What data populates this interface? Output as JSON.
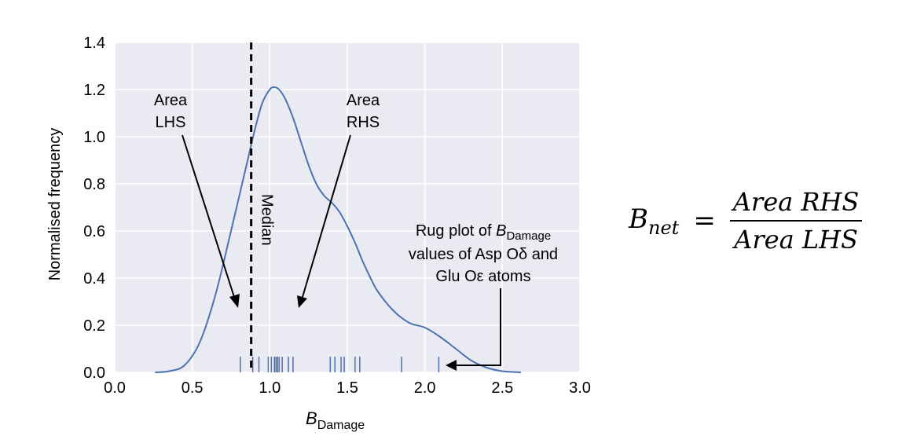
{
  "chart_data": {
    "type": "line",
    "xlabel_main": "B",
    "xlabel_sub": "Damage",
    "ylabel": "Normalised frequency",
    "xlim": [
      0.0,
      3.0
    ],
    "ylim": [
      0.0,
      1.4
    ],
    "x_ticks": [
      "0.0",
      "0.5",
      "1.0",
      "1.5",
      "2.0",
      "2.5",
      "3.0"
    ],
    "y_ticks": [
      "0.0",
      "0.2",
      "0.4",
      "0.6",
      "0.8",
      "1.0",
      "1.2",
      "1.4"
    ],
    "grid": true,
    "series": [
      {
        "x": [
          0.26,
          0.35,
          0.45,
          0.55,
          0.65,
          0.75,
          0.85,
          0.9,
          0.95,
          1.0,
          1.03,
          1.06,
          1.1,
          1.15,
          1.2,
          1.25,
          1.3,
          1.35,
          1.4,
          1.45,
          1.5,
          1.55,
          1.6,
          1.65,
          1.7,
          1.8,
          1.9,
          2.0,
          2.1,
          2.2,
          2.3,
          2.4,
          2.5,
          2.62
        ],
        "y": [
          0.0,
          0.005,
          0.03,
          0.13,
          0.33,
          0.6,
          0.88,
          1.02,
          1.14,
          1.2,
          1.21,
          1.2,
          1.16,
          1.08,
          0.98,
          0.88,
          0.8,
          0.75,
          0.72,
          0.68,
          0.62,
          0.55,
          0.47,
          0.4,
          0.34,
          0.26,
          0.21,
          0.19,
          0.15,
          0.1,
          0.05,
          0.02,
          0.005,
          0.0
        ]
      }
    ],
    "median_x": 0.88,
    "median_label": "Median",
    "rug_x": [
      0.81,
      0.89,
      0.93,
      0.99,
      1.01,
      1.03,
      1.04,
      1.05,
      1.06,
      1.08,
      1.12,
      1.15,
      1.39,
      1.42,
      1.46,
      1.48,
      1.55,
      1.58,
      1.85,
      2.09
    ],
    "annotations": {
      "area_lhs": [
        "Area",
        "LHS"
      ],
      "area_rhs": [
        "Area",
        "RHS"
      ],
      "rug_line1_pre": "Rug plot of ",
      "rug_line1_b": "B",
      "rug_line1_sub": "Damage",
      "rug_line2": "values of Asp Oδ and",
      "rug_line3": "Glu Oε atoms"
    },
    "colors": {
      "line": "#4c72b0",
      "plot_bg": "#eaeaf2",
      "grid": "#ffffff"
    }
  },
  "formula": {
    "lhs": "B",
    "lhs_sub": "net",
    "eq": "=",
    "numerator": "Area RHS",
    "denominator": "Area LHS"
  }
}
